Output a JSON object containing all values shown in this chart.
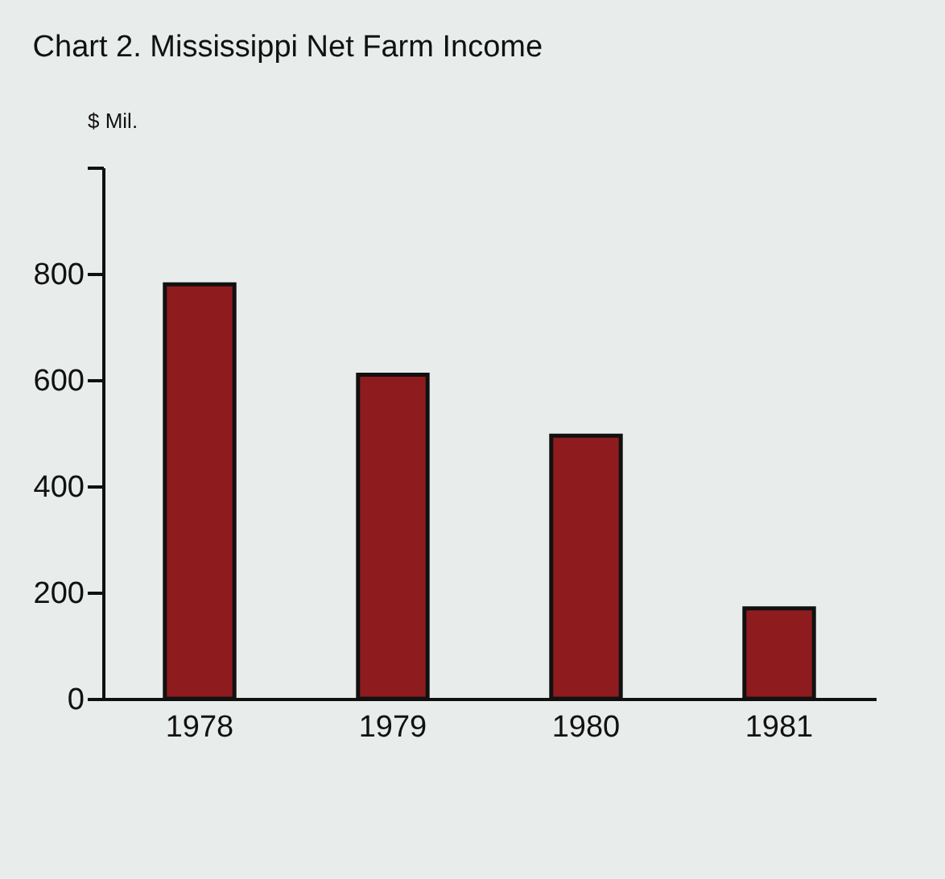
{
  "chart_data": {
    "type": "bar",
    "title": "Chart 2. Mississippi Net Farm Income",
    "ylabel": "$ Mil.",
    "categories": [
      "1978",
      "1979",
      "1980",
      "1981"
    ],
    "values": [
      780,
      610,
      495,
      170
    ],
    "color": "#8e1c1f",
    "ylim": [
      0,
      1000
    ],
    "yticks": [
      0,
      200,
      400,
      600,
      800,
      {
        "value": 1000,
        "label": null
      }
    ],
    "grid": false
  }
}
